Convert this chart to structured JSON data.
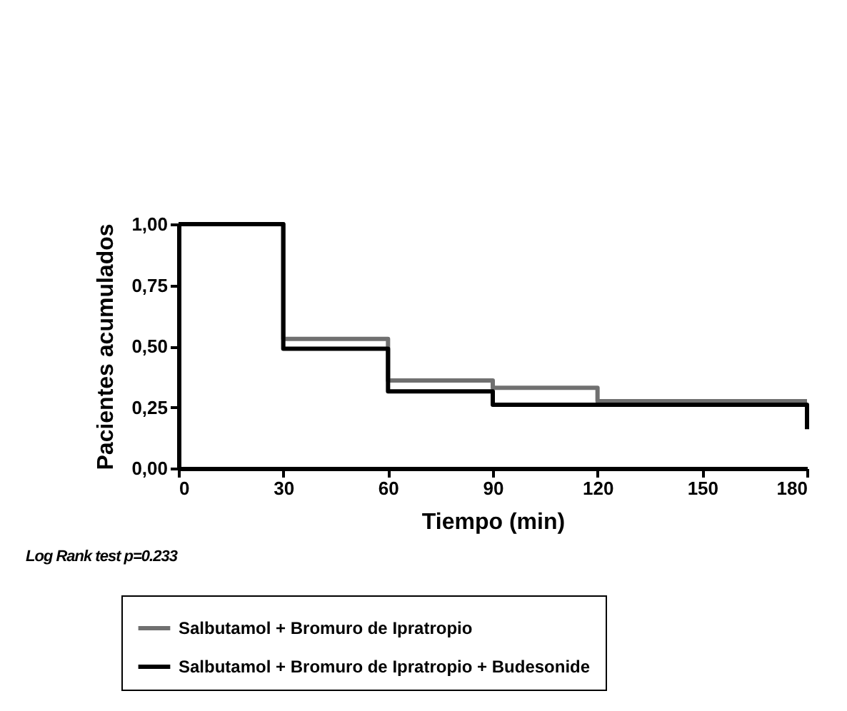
{
  "chart_data": {
    "type": "step",
    "xlabel": "Tiempo (min)",
    "ylabel": "Pacientes acumulados",
    "annotations": [
      "Log Rank test p=0.233"
    ],
    "xlim": [
      0,
      180
    ],
    "xticks": [
      0,
      30,
      60,
      90,
      120,
      150,
      180
    ],
    "ylim": [
      0,
      1
    ],
    "yticks": [
      {
        "value": 0,
        "label": "0,00"
      },
      {
        "value": 0.25,
        "label": "0,25"
      },
      {
        "value": 0.5,
        "label": "0,50"
      },
      {
        "value": 0.75,
        "label": "0,75"
      },
      {
        "value": 1,
        "label": "1,00"
      }
    ],
    "grid": false,
    "legend": "bottom",
    "line_style": "solid",
    "series": [
      {
        "name": "Salbutamol + Bromuro de Ipratropio",
        "color": "#707070",
        "x": [
          0,
          30,
          60,
          90,
          120,
          180
        ],
        "values": [
          1,
          0.53,
          0.36,
          0.33,
          0.275,
          0.275
        ]
      },
      {
        "name": "Salbutamol + Bromuro de Ipratropio + Budesonide",
        "color": "#000000",
        "x": [
          0,
          30,
          60,
          90,
          180,
          180
        ],
        "values": [
          1,
          0.49,
          0.315,
          0.26,
          0.26,
          0.16
        ]
      }
    ]
  }
}
